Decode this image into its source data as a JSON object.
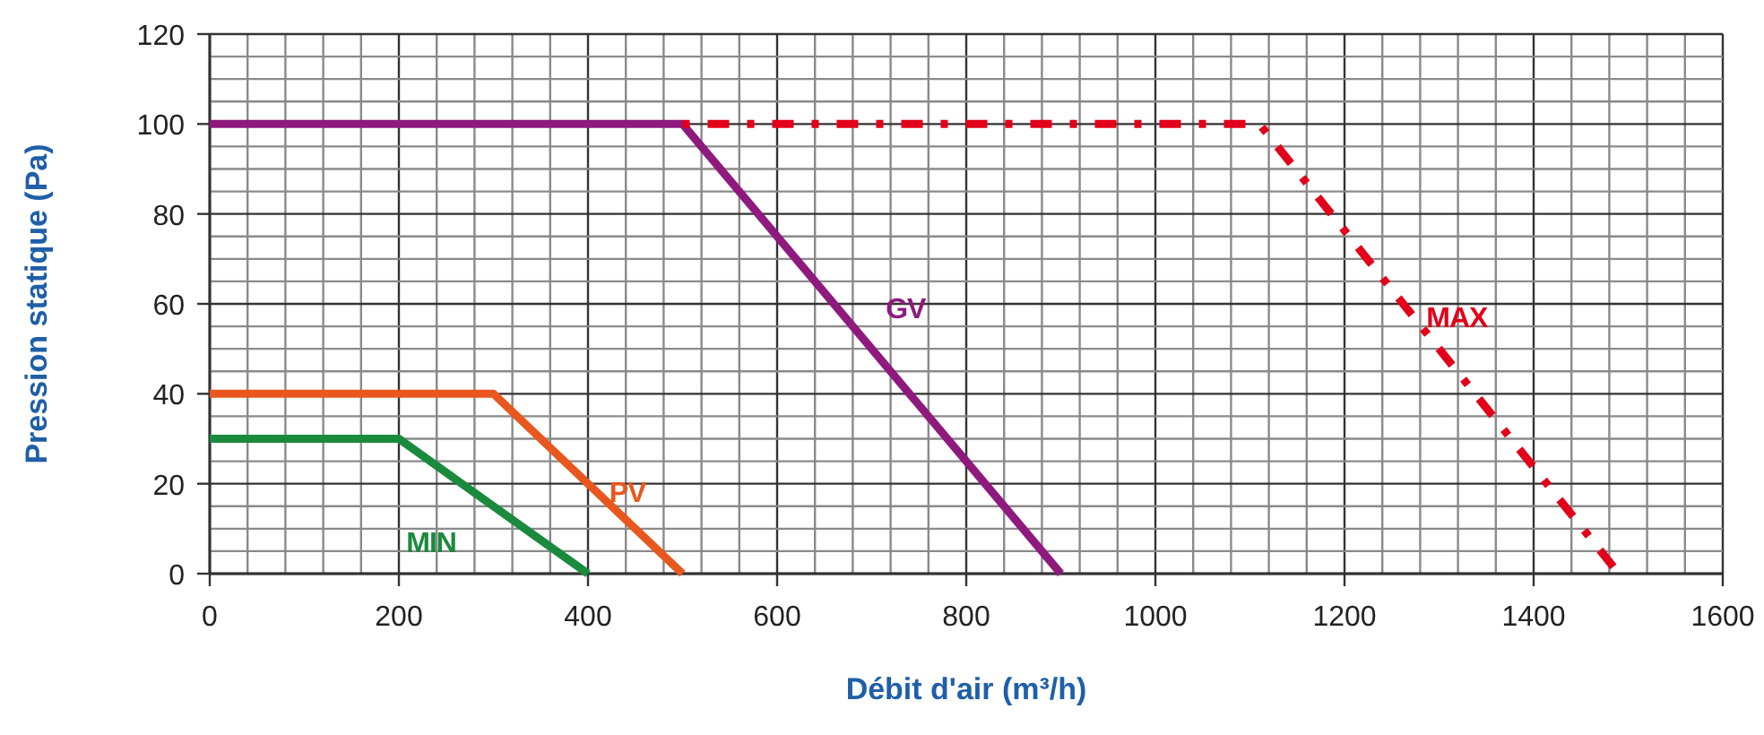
{
  "chart_data": {
    "type": "line",
    "xlabel": "Débit d'air (m³/h)",
    "ylabel": "Pression statique (Pa)",
    "xlim": [
      0,
      1600
    ],
    "ylim": [
      0,
      120
    ],
    "grid": true,
    "marker": "none",
    "xticks": [
      0,
      {
        "value": 40,
        "label": null
      },
      {
        "value": 80,
        "label": null
      },
      {
        "value": 120,
        "label": null
      },
      {
        "value": 160,
        "label": null
      },
      200,
      {
        "value": 240,
        "label": null
      },
      {
        "value": 280,
        "label": null
      },
      {
        "value": 320,
        "label": null
      },
      {
        "value": 360,
        "label": null
      },
      400,
      {
        "value": 440,
        "label": null
      },
      {
        "value": 480,
        "label": null
      },
      {
        "value": 520,
        "label": null
      },
      {
        "value": 560,
        "label": null
      },
      600,
      {
        "value": 640,
        "label": null
      },
      {
        "value": 680,
        "label": null
      },
      {
        "value": 720,
        "label": null
      },
      {
        "value": 760,
        "label": null
      },
      800,
      {
        "value": 840,
        "label": null
      },
      {
        "value": 880,
        "label": null
      },
      {
        "value": 920,
        "label": null
      },
      {
        "value": 960,
        "label": null
      },
      1000,
      {
        "value": 1040,
        "label": null
      },
      {
        "value": 1080,
        "label": null
      },
      {
        "value": 1120,
        "label": null
      },
      {
        "value": 1160,
        "label": null
      },
      1200,
      {
        "value": 1240,
        "label": null
      },
      {
        "value": 1280,
        "label": null
      },
      {
        "value": 1320,
        "label": null
      },
      {
        "value": 1360,
        "label": null
      },
      1400,
      {
        "value": 1440,
        "label": null
      },
      {
        "value": 1480,
        "label": null
      },
      {
        "value": 1520,
        "label": null
      },
      {
        "value": 1560,
        "label": null
      },
      1600
    ],
    "yticks": [
      0,
      {
        "value": 5,
        "label": null
      },
      {
        "value": 10,
        "label": null
      },
      {
        "value": 15,
        "label": null
      },
      20,
      {
        "value": 25,
        "label": null
      },
      {
        "value": 30,
        "label": null
      },
      {
        "value": 35,
        "label": null
      },
      40,
      {
        "value": 45,
        "label": null
      },
      {
        "value": 50,
        "label": null
      },
      {
        "value": 55,
        "label": null
      },
      60,
      {
        "value": 65,
        "label": null
      },
      {
        "value": 70,
        "label": null
      },
      {
        "value": 75,
        "label": null
      },
      80,
      {
        "value": 85,
        "label": null
      },
      {
        "value": 90,
        "label": null
      },
      {
        "value": 95,
        "label": null
      },
      100,
      {
        "value": 105,
        "label": null
      },
      {
        "value": 110,
        "label": null
      },
      {
        "value": 115,
        "label": null
      },
      120
    ],
    "series": [
      {
        "name": "MIN",
        "color": "#1a8a3c",
        "line_style": "solid",
        "x": [
          0,
          200,
          400
        ],
        "values": [
          30,
          30,
          0
        ]
      },
      {
        "name": "PV",
        "color": "#e8581e",
        "line_style": "solid",
        "x": [
          0,
          300,
          500
        ],
        "values": [
          40,
          40,
          0
        ]
      },
      {
        "name": "GV",
        "color": "#8e1a7e",
        "line_style": "solid",
        "x": [
          0,
          500,
          900
        ],
        "values": [
          100,
          100,
          0
        ]
      },
      {
        "name": "MAX",
        "color": "#e2001a",
        "line_style": "dotted",
        "x": [
          500,
          1110,
          1490
        ],
        "values": [
          100,
          100,
          0
        ]
      }
    ]
  }
}
